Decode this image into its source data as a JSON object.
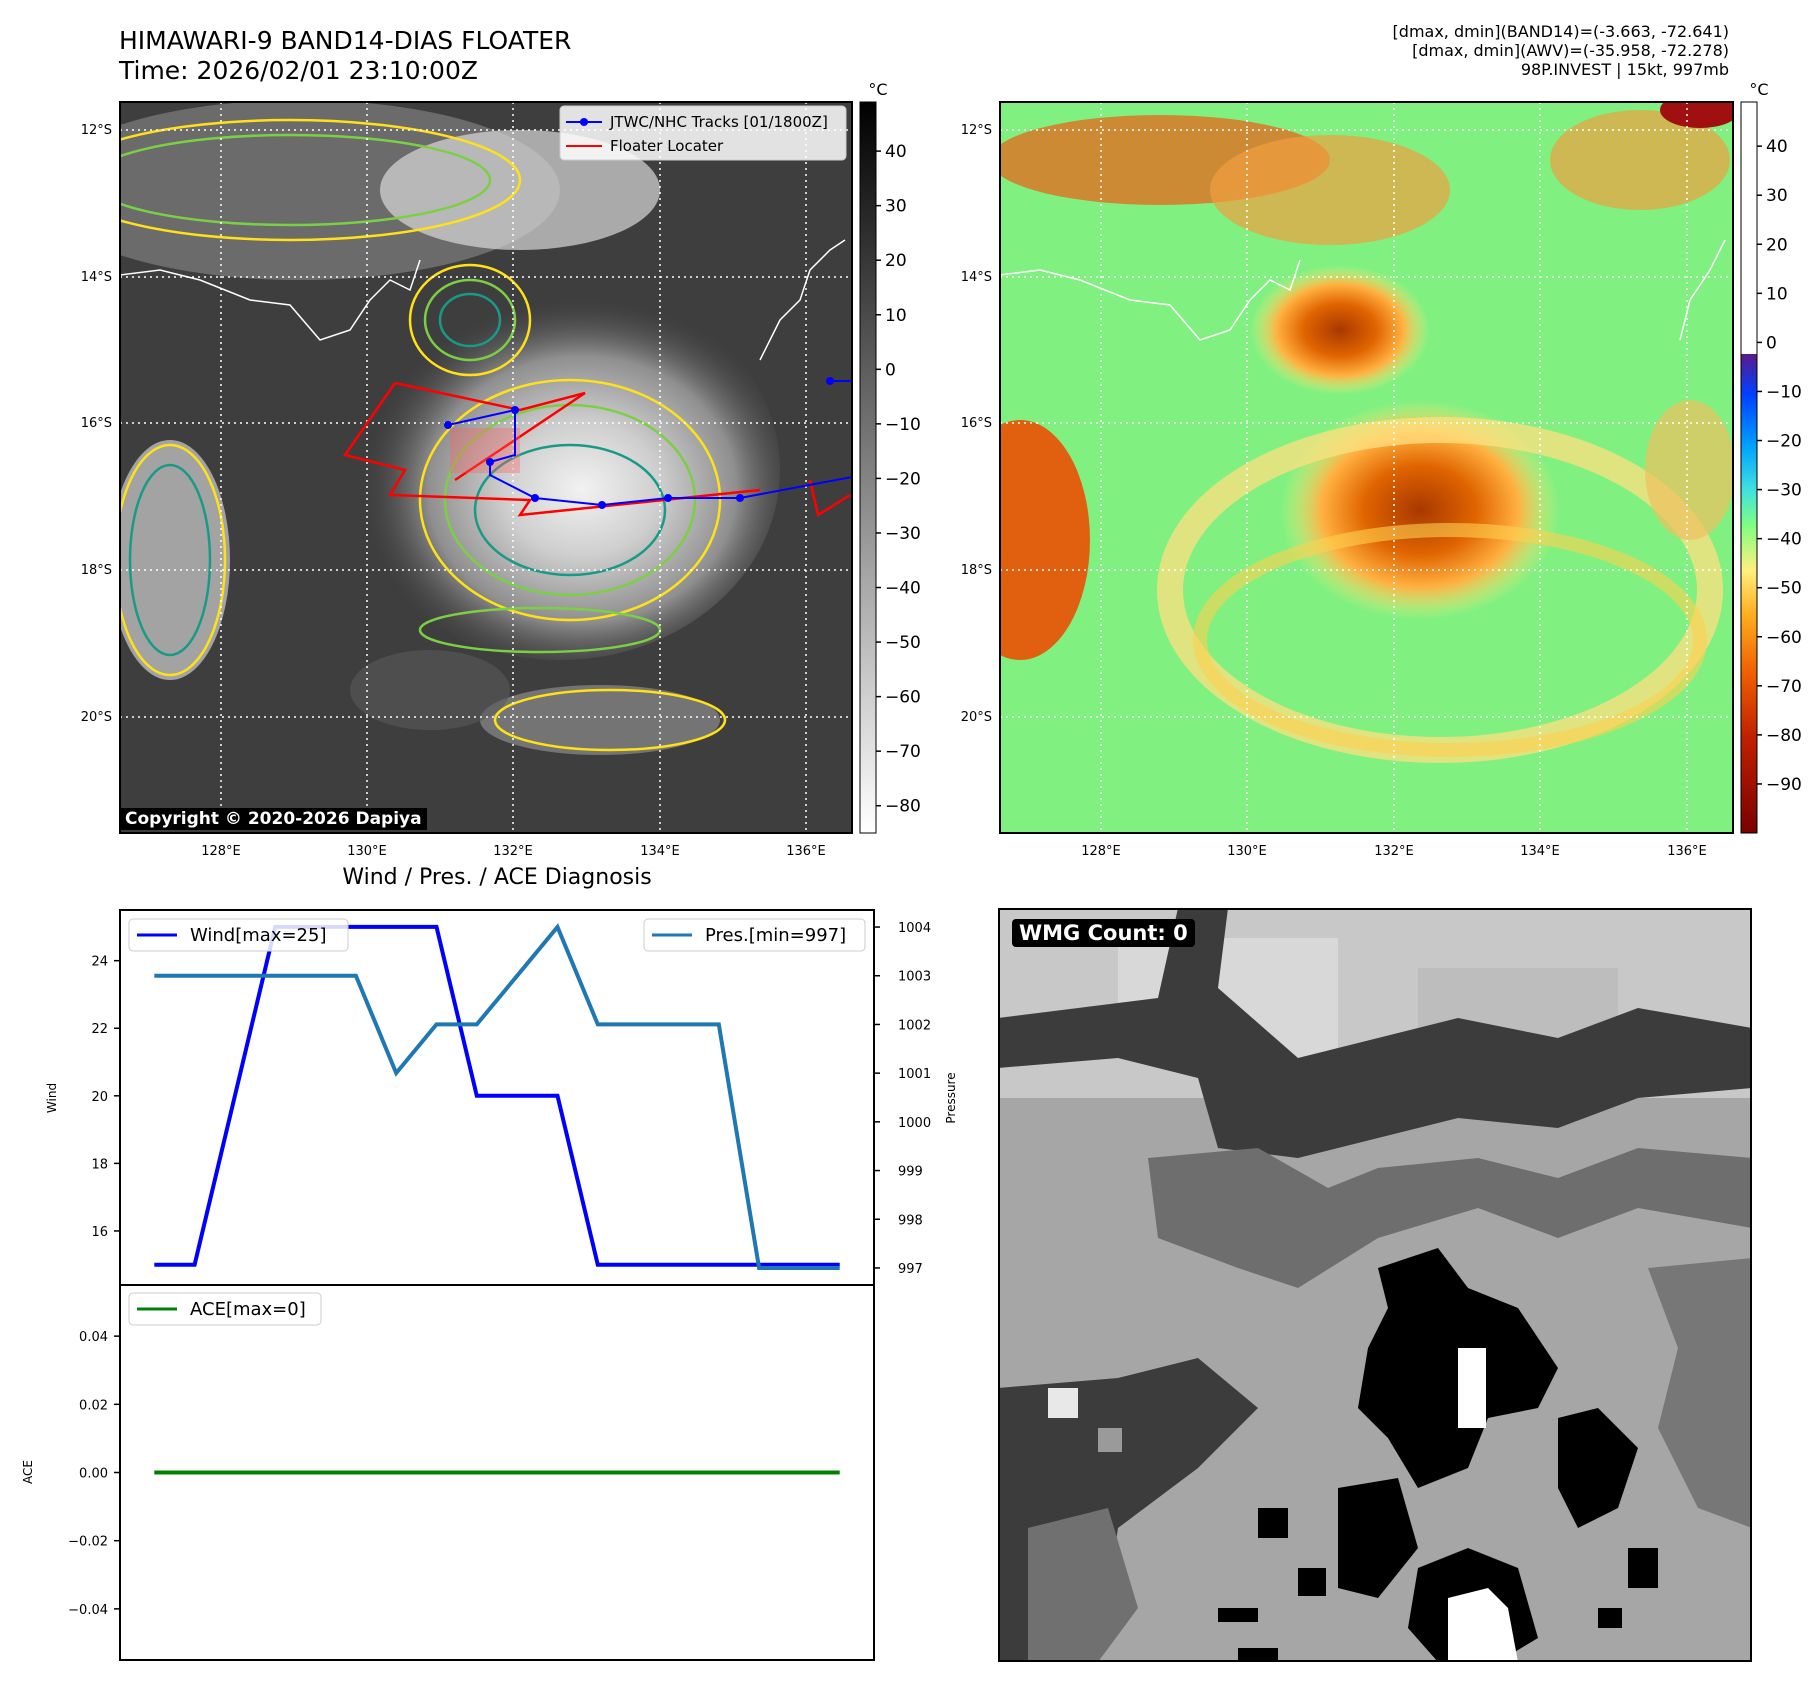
{
  "header": {
    "title_line1": "HIMAWARI-9 BAND14-DIAS FLOATER",
    "title_line2": "Time: 2026/02/01 23:10:00Z",
    "info_line1": "[dmax, dmin](BAND14)=(-3.663, -72.641)",
    "info_line2": "[dmax, dmin](AWV)=(-35.958, -72.278)",
    "info_line3": "98P.INVEST | 15kt, 997mb"
  },
  "map_axes": {
    "lat_ticks": [
      "12°S",
      "14°S",
      "16°S",
      "18°S",
      "20°S"
    ],
    "lon_ticks": [
      "128°E",
      "130°E",
      "132°E",
      "134°E",
      "136°E"
    ]
  },
  "ir_panel": {
    "legend": [
      "JTWC/NHC Tracks [01/1800Z]",
      "Floater Locater"
    ],
    "copyright": "Copyright © 2020-2026 Dapiya",
    "track_color": "#0000ff",
    "locater_color": "#ff0000",
    "contour_colors": [
      "#ffe11a",
      "#7ccf45",
      "#1a9a86"
    ]
  },
  "ir_colorbar": {
    "unit": "°C",
    "ticks": [
      40,
      30,
      20,
      10,
      0,
      -10,
      -20,
      -30,
      -40,
      -50,
      -60,
      -70,
      -80
    ],
    "range": [
      -85,
      49
    ]
  },
  "awv_colorbar": {
    "unit": "°C",
    "ticks": [
      40,
      30,
      20,
      10,
      0,
      -10,
      -20,
      -30,
      -40,
      -50,
      -60,
      -70,
      -80,
      -90
    ],
    "range": [
      -100,
      49
    ]
  },
  "diag_panel": {
    "title": "Wind / Pres. / ACE Diagnosis",
    "wind_ylabel": "Wind",
    "pressure_ylabel": "Pressure",
    "ace_ylabel": "ACE",
    "wind_legend": "Wind[max=25]",
    "pres_legend": "Pres.[min=997]",
    "ace_legend": "ACE[max=0]"
  },
  "chart_data": [
    {
      "type": "line",
      "name": "wind-pressure",
      "x": [
        0,
        1,
        2,
        3,
        4,
        5,
        6,
        7,
        8,
        9,
        10,
        11,
        12,
        13,
        14,
        15,
        16,
        17
      ],
      "series": [
        {
          "name": "Wind[max=25]",
          "axis": "left",
          "color": "#0000ff",
          "values": [
            15,
            15,
            20,
            25,
            25,
            25,
            25,
            25,
            20,
            20,
            20,
            15,
            15,
            15,
            15,
            15,
            15,
            15
          ]
        },
        {
          "name": "Pres.[min=997]",
          "axis": "right",
          "color": "#1f77b4",
          "values": [
            1003,
            1003,
            1003,
            1003,
            1003,
            1003,
            1001,
            1002,
            1002,
            1003,
            1004,
            1002,
            1002,
            1002,
            1002,
            997,
            997,
            997
          ]
        }
      ],
      "ylabel": "Wind",
      "y2label": "Pressure",
      "yticks": [
        16,
        18,
        20,
        22,
        24
      ],
      "y2ticks": [
        997,
        998,
        999,
        1000,
        1001,
        1002,
        1003,
        1004
      ],
      "ylim": [
        14.4,
        25.5
      ],
      "y2lim": [
        996.65,
        1004.35
      ],
      "xlim": [
        -0.85,
        17.85
      ]
    },
    {
      "type": "line",
      "name": "ace",
      "x": [
        0,
        17
      ],
      "series": [
        {
          "name": "ACE[max=0]",
          "color": "#008000",
          "values": [
            0,
            0
          ]
        }
      ],
      "ylabel": "ACE",
      "yticks": [
        0.04,
        0.02,
        0.0,
        -0.02,
        -0.04
      ],
      "ytick_labels": [
        "0.04",
        "0.02",
        "0.00",
        "−0.02",
        "−0.04"
      ],
      "ylim": [
        -0.055,
        0.055
      ],
      "xlim": [
        -0.85,
        17.85
      ]
    }
  ],
  "wmg_panel": {
    "count_label": "WMG Count: 0"
  }
}
